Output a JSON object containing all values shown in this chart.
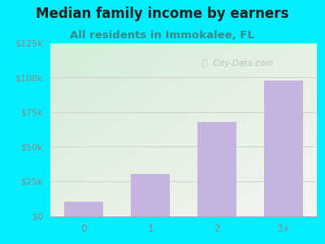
{
  "categories": [
    "0",
    "1",
    "2",
    "3+"
  ],
  "values": [
    10000,
    30000,
    68000,
    98000
  ],
  "bar_color": "#c5b3e0",
  "title": "Median family income by earners",
  "subtitle": "All residents in Immokalee, FL",
  "ylim": [
    0,
    125000
  ],
  "yticks": [
    0,
    25000,
    50000,
    75000,
    100000,
    125000
  ],
  "ytick_labels": [
    "$0",
    "$25k",
    "$50k",
    "$75k",
    "$100k",
    "$125k"
  ],
  "background_color": "#00eeff",
  "title_color": "#222222",
  "subtitle_color": "#3a8a8a",
  "tick_color": "#888888",
  "watermark": " City-Data.com",
  "title_fontsize": 12,
  "subtitle_fontsize": 9.5,
  "tick_fontsize": 8
}
